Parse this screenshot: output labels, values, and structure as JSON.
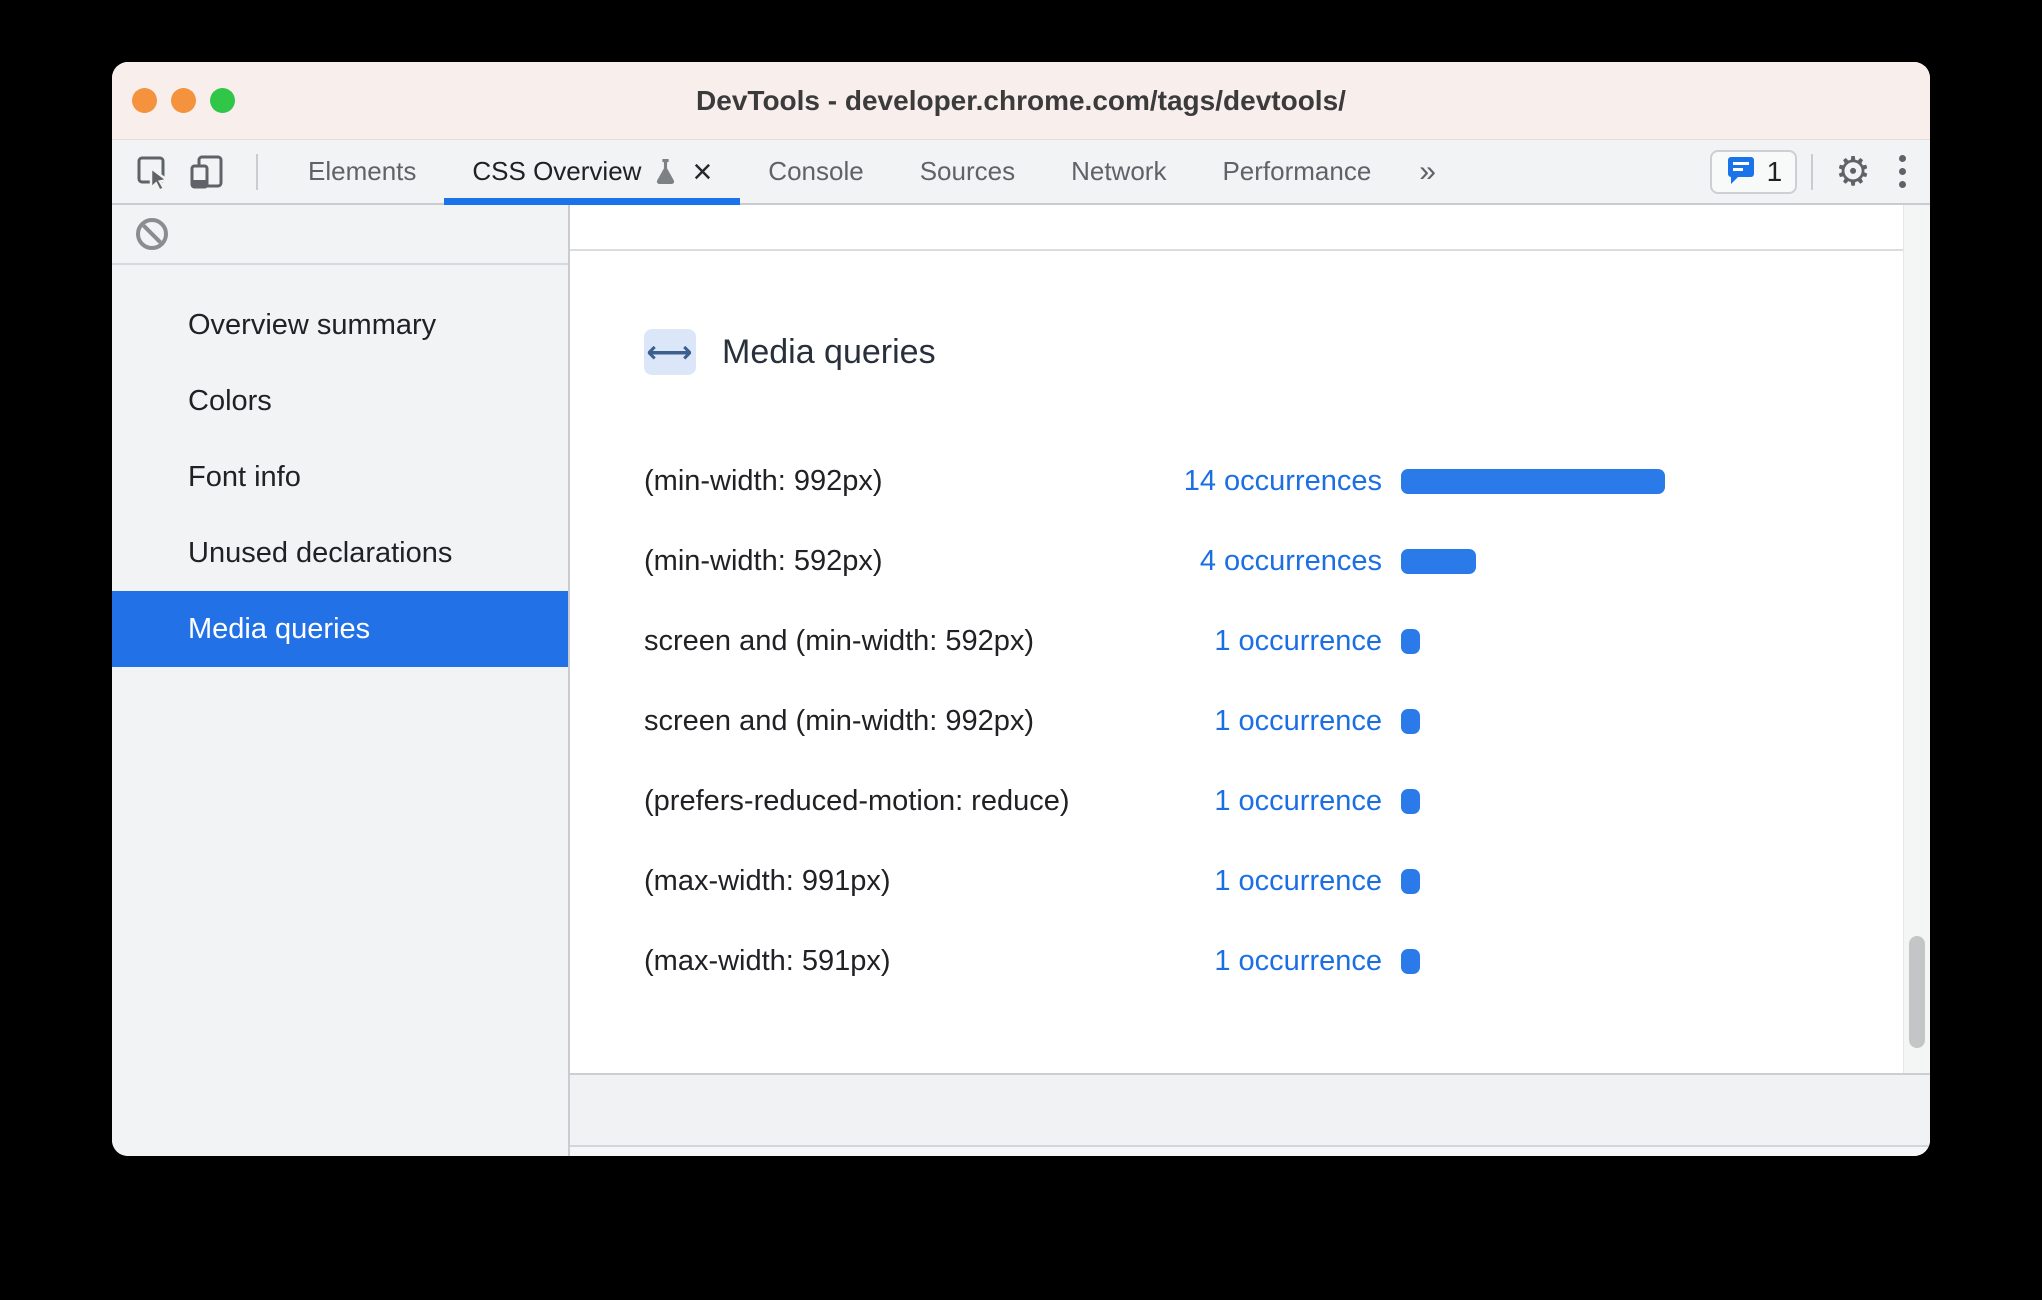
{
  "window": {
    "title": "DevTools - developer.chrome.com/tags/devtools/"
  },
  "toolbar": {
    "tabs": [
      {
        "label": "Elements",
        "active": false,
        "experiment_icon": false,
        "closable": false
      },
      {
        "label": "CSS Overview",
        "active": true,
        "experiment_icon": true,
        "closable": true
      },
      {
        "label": "Console",
        "active": false,
        "experiment_icon": false,
        "closable": false
      },
      {
        "label": "Sources",
        "active": false,
        "experiment_icon": false,
        "closable": false
      },
      {
        "label": "Network",
        "active": false,
        "experiment_icon": false,
        "closable": false
      },
      {
        "label": "Performance",
        "active": false,
        "experiment_icon": false,
        "closable": false
      }
    ],
    "more_tabs_label": "»",
    "close_tab_glyph": "×",
    "issues_count": "1",
    "gear_glyph": "⚙"
  },
  "sidebar": {
    "items": [
      {
        "label": "Overview summary",
        "selected": false
      },
      {
        "label": "Colors",
        "selected": false
      },
      {
        "label": "Font info",
        "selected": false
      },
      {
        "label": "Unused declarations",
        "selected": false
      },
      {
        "label": "Media queries",
        "selected": true
      }
    ]
  },
  "main": {
    "section_title": "Media queries",
    "badge_glyph": "←→",
    "rows": [
      {
        "query": "(min-width: 992px)",
        "occurrences": 14,
        "occurrences_label": "14 occurrences"
      },
      {
        "query": "(min-width: 592px)",
        "occurrences": 4,
        "occurrences_label": "4 occurrences"
      },
      {
        "query": "screen and (min-width: 592px)",
        "occurrences": 1,
        "occurrences_label": "1 occurrence"
      },
      {
        "query": "screen and (min-width: 992px)",
        "occurrences": 1,
        "occurrences_label": "1 occurrence"
      },
      {
        "query": "(prefers-reduced-motion: reduce)",
        "occurrences": 1,
        "occurrences_label": "1 occurrence"
      },
      {
        "query": "(max-width: 991px)",
        "occurrences": 1,
        "occurrences_label": "1 occurrence"
      },
      {
        "query": "(max-width: 591px)",
        "occurrences": 1,
        "occurrences_label": "1 occurrence"
      }
    ]
  },
  "colors": {
    "accent_blue": "#1a73e8",
    "bar_blue": "#2b7ae9",
    "link_blue": "#1c6fe2",
    "selected_item_blue": "#2271e6",
    "titlebar_pink": "#f8efec",
    "toolbar_gray": "#f1f3f4",
    "traffic_orange": "#f5923e",
    "traffic_green": "#30c648"
  }
}
